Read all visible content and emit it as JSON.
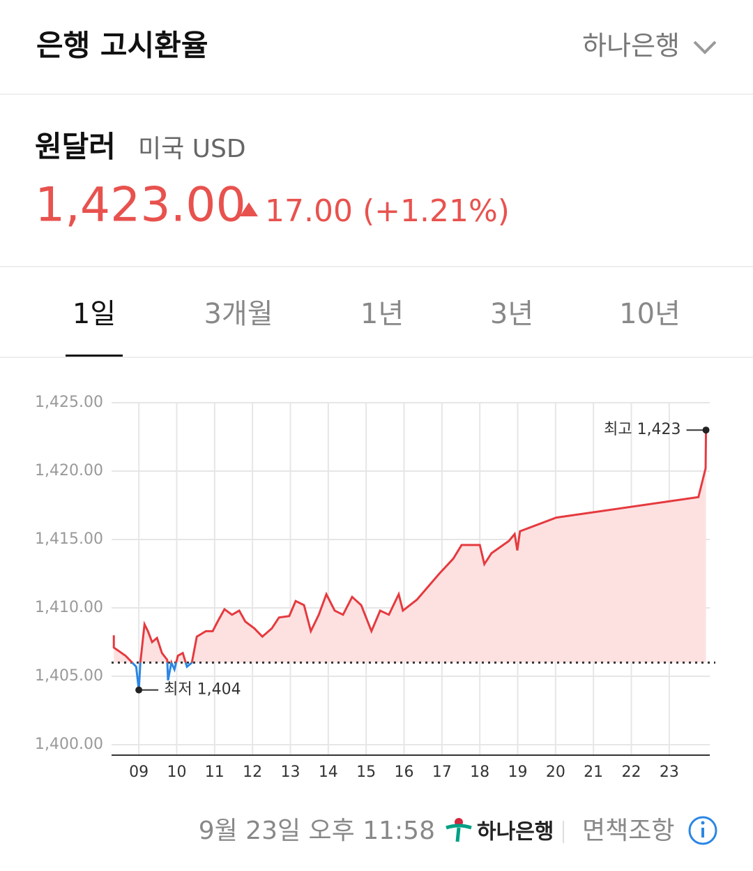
{
  "header": {
    "title": "은행 고시환율",
    "bank": "하나은행"
  },
  "currency": {
    "name": "원달러",
    "subtitle": "미국 USD",
    "price": "1,423.00",
    "change": "17.00 (+1.21%)"
  },
  "tabs": [
    "1일",
    "3개월",
    "1년",
    "3년",
    "10년"
  ],
  "footer": {
    "timestamp": "9월 23일 오후 11:58",
    "logo": "하나은행",
    "disclaimer": "면책조항"
  },
  "chart_data": {
    "type": "line",
    "x": [
      8.34,
      8.34,
      8.65,
      8.93,
      9.0,
      9.04,
      9.15,
      9.24,
      9.35,
      9.48,
      9.61,
      9.75,
      9.77,
      9.86,
      9.94,
      10.03,
      10.16,
      10.27,
      10.4,
      10.53,
      10.77,
      10.95,
      11.08,
      11.26,
      11.46,
      11.65,
      11.81,
      12.05,
      12.26,
      12.51,
      12.7,
      12.97,
      13.14,
      13.36,
      13.54,
      13.75,
      13.95,
      14.17,
      14.39,
      14.63,
      14.87,
      15.14,
      15.37,
      15.6,
      15.86,
      15.97,
      16.34,
      16.93,
      17.3,
      17.52,
      18.0,
      18.12,
      18.31,
      18.77,
      18.92,
      18.99,
      19.06,
      20.02,
      23.77,
      23.96,
      23.97
    ],
    "values": [
      1408.0,
      1407.1,
      1406.5,
      1405.7,
      1404.0,
      1406.0,
      1408.8,
      1408.3,
      1407.5,
      1407.8,
      1406.7,
      1406.2,
      1404.7,
      1406.0,
      1405.5,
      1406.5,
      1406.7,
      1405.7,
      1406.0,
      1407.9,
      1408.3,
      1408.3,
      1409.0,
      1409.9,
      1409.5,
      1409.8,
      1409.0,
      1408.5,
      1407.9,
      1408.5,
      1409.3,
      1409.4,
      1410.5,
      1410.2,
      1408.3,
      1409.5,
      1411.0,
      1409.8,
      1409.5,
      1410.8,
      1410.2,
      1408.3,
      1409.8,
      1409.5,
      1411.0,
      1409.8,
      1410.6,
      1412.5,
      1413.6,
      1414.6,
      1414.6,
      1413.2,
      1414.0,
      1414.9,
      1415.4,
      1414.2,
      1415.6,
      1416.6,
      1418.1,
      1420.2,
      1423.0
    ],
    "color": "#e53a3f",
    "below_color": "#2b86e4",
    "fill_color": "#fde1e1",
    "baseline": 1406,
    "xlim": [
      8.28,
      24.07
    ],
    "ylim": [
      1400,
      1425
    ],
    "xticks": [
      {
        "value": 9,
        "label": "09"
      },
      {
        "value": 10,
        "label": "10"
      },
      11,
      12,
      13,
      14,
      15,
      16,
      17,
      18,
      19,
      20,
      21,
      22,
      23
    ],
    "yticks": [
      {
        "value": 1400,
        "label": "1,400.00"
      },
      {
        "value": 1405,
        "label": "1,405.00"
      },
      {
        "value": 1410,
        "label": "1,410.00"
      },
      {
        "value": 1415,
        "label": "1,415.00"
      },
      {
        "value": 1420,
        "label": "1,420.00"
      },
      {
        "value": 1425,
        "label": "1,425.00"
      }
    ],
    "grid": true,
    "annotations": [
      {
        "text": "최고 1,423",
        "x": 23.97,
        "y": 1423
      },
      {
        "text": "최저 1,404",
        "x": 9.0,
        "y": 1404
      }
    ]
  }
}
